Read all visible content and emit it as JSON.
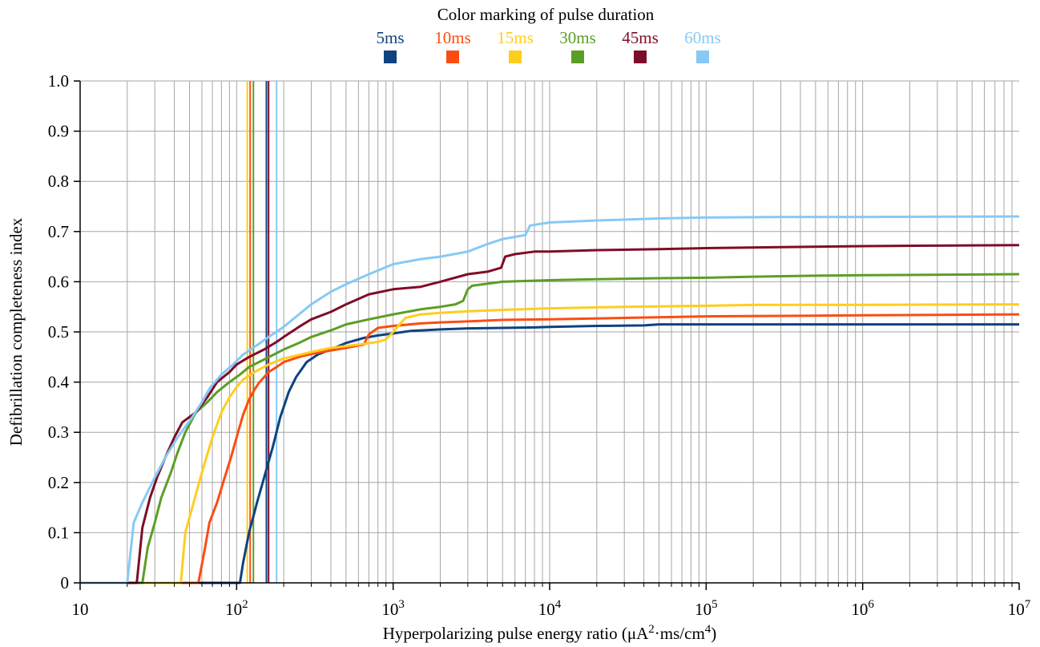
{
  "chart_data": {
    "type": "line",
    "legend": {
      "title": "Color marking of pulse duration",
      "placement": "top-center"
    },
    "xlabel": "Hyperpolarizing pulse energy ratio (μA²·ms/cm⁴)",
    "xlabel_parts": {
      "prefix": "Hyperpolarizing pulse energy ratio (μA",
      "sup1": "2",
      "mid": "·ms/cm",
      "sup2": "4",
      "suffix": ")"
    },
    "ylabel": "Defibrillation completeness index",
    "xscale": "log",
    "xlim": [
      10,
      10000000
    ],
    "ylim": [
      0,
      1.0
    ],
    "grid": true,
    "x_ticks": [
      {
        "value": 10,
        "base": "10",
        "exp": ""
      },
      {
        "value": 100,
        "base": "10",
        "exp": "2"
      },
      {
        "value": 1000,
        "base": "10",
        "exp": "3"
      },
      {
        "value": 10000,
        "base": "10",
        "exp": "4"
      },
      {
        "value": 100000,
        "base": "10",
        "exp": "5"
      },
      {
        "value": 1000000,
        "base": "10",
        "exp": "6"
      },
      {
        "value": 10000000,
        "base": "10",
        "exp": "7"
      }
    ],
    "y_ticks": [
      {
        "value": 0,
        "label": "0"
      },
      {
        "value": 0.1,
        "label": "0.1"
      },
      {
        "value": 0.2,
        "label": "0.2"
      },
      {
        "value": 0.3,
        "label": "0.3"
      },
      {
        "value": 0.4,
        "label": "0.4"
      },
      {
        "value": 0.5,
        "label": "0.5"
      },
      {
        "value": 0.6,
        "label": "0.6"
      },
      {
        "value": 0.7,
        "label": "0.7"
      },
      {
        "value": 0.8,
        "label": "0.8"
      },
      {
        "value": 0.9,
        "label": "0.9"
      },
      {
        "value": 1.0,
        "label": "1.0"
      }
    ],
    "series": [
      {
        "name": "5ms",
        "color": "#0d4380",
        "threshold": 155,
        "points": [
          [
            10,
            0
          ],
          [
            105,
            0
          ],
          [
            110,
            0.04
          ],
          [
            120,
            0.1
          ],
          [
            135,
            0.16
          ],
          [
            150,
            0.21
          ],
          [
            170,
            0.27
          ],
          [
            190,
            0.33
          ],
          [
            215,
            0.38
          ],
          [
            240,
            0.41
          ],
          [
            280,
            0.44
          ],
          [
            330,
            0.455
          ],
          [
            400,
            0.465
          ],
          [
            500,
            0.478
          ],
          [
            650,
            0.488
          ],
          [
            800,
            0.493
          ],
          [
            1000,
            0.497
          ],
          [
            1300,
            0.502
          ],
          [
            2000,
            0.505
          ],
          [
            3000,
            0.507
          ],
          [
            5000,
            0.508
          ],
          [
            8000,
            0.509
          ],
          [
            10000,
            0.51
          ],
          [
            20000,
            0.512
          ],
          [
            40000,
            0.513
          ],
          [
            50000,
            0.515
          ],
          [
            100000,
            0.515
          ],
          [
            1000000,
            0.515
          ],
          [
            10000000,
            0.515
          ]
        ]
      },
      {
        "name": "10ms",
        "color": "#fb4d12",
        "threshold": 122,
        "points": [
          [
            10,
            0
          ],
          [
            57,
            0
          ],
          [
            62,
            0.06
          ],
          [
            67,
            0.12
          ],
          [
            75,
            0.16
          ],
          [
            82,
            0.2
          ],
          [
            92,
            0.25
          ],
          [
            100,
            0.29
          ],
          [
            110,
            0.335
          ],
          [
            120,
            0.365
          ],
          [
            130,
            0.385
          ],
          [
            140,
            0.4
          ],
          [
            150,
            0.41
          ],
          [
            160,
            0.42
          ],
          [
            180,
            0.43
          ],
          [
            200,
            0.44
          ],
          [
            250,
            0.45
          ],
          [
            300,
            0.456
          ],
          [
            400,
            0.463
          ],
          [
            500,
            0.468
          ],
          [
            600,
            0.473
          ],
          [
            650,
            0.475
          ],
          [
            700,
            0.495
          ],
          [
            800,
            0.508
          ],
          [
            1000,
            0.512
          ],
          [
            1500,
            0.517
          ],
          [
            2000,
            0.519
          ],
          [
            3000,
            0.521
          ],
          [
            5000,
            0.524
          ],
          [
            10000,
            0.525
          ],
          [
            30000,
            0.528
          ],
          [
            100000,
            0.531
          ],
          [
            300000,
            0.532
          ],
          [
            1000000,
            0.533
          ],
          [
            3000000,
            0.534
          ],
          [
            10000000,
            0.535
          ]
        ]
      },
      {
        "name": "15ms",
        "color": "#ffcd1e",
        "threshold": 117,
        "points": [
          [
            10,
            0
          ],
          [
            44,
            0
          ],
          [
            47,
            0.1
          ],
          [
            52,
            0.15
          ],
          [
            60,
            0.22
          ],
          [
            70,
            0.29
          ],
          [
            80,
            0.34
          ],
          [
            90,
            0.37
          ],
          [
            100,
            0.39
          ],
          [
            110,
            0.405
          ],
          [
            130,
            0.42
          ],
          [
            160,
            0.435
          ],
          [
            200,
            0.447
          ],
          [
            300,
            0.46
          ],
          [
            400,
            0.468
          ],
          [
            600,
            0.475
          ],
          [
            800,
            0.48
          ],
          [
            900,
            0.485
          ],
          [
            1000,
            0.5
          ],
          [
            1100,
            0.515
          ],
          [
            1200,
            0.528
          ],
          [
            1500,
            0.535
          ],
          [
            2000,
            0.538
          ],
          [
            3000,
            0.541
          ],
          [
            5000,
            0.544
          ],
          [
            10000,
            0.547
          ],
          [
            30000,
            0.55
          ],
          [
            100000,
            0.552
          ],
          [
            200000,
            0.554
          ],
          [
            1000000,
            0.554
          ],
          [
            10000000,
            0.555
          ]
        ]
      },
      {
        "name": "30ms",
        "color": "#5c9e25",
        "threshold": 128,
        "points": [
          [
            10,
            0
          ],
          [
            25,
            0
          ],
          [
            27,
            0.07
          ],
          [
            30,
            0.12
          ],
          [
            33,
            0.17
          ],
          [
            38,
            0.22
          ],
          [
            42,
            0.26
          ],
          [
            47,
            0.3
          ],
          [
            55,
            0.34
          ],
          [
            65,
            0.36
          ],
          [
            75,
            0.38
          ],
          [
            90,
            0.4
          ],
          [
            105,
            0.415
          ],
          [
            120,
            0.43
          ],
          [
            150,
            0.445
          ],
          [
            200,
            0.465
          ],
          [
            250,
            0.478
          ],
          [
            300,
            0.49
          ],
          [
            400,
            0.503
          ],
          [
            500,
            0.515
          ],
          [
            700,
            0.525
          ],
          [
            1000,
            0.535
          ],
          [
            1500,
            0.545
          ],
          [
            2000,
            0.55
          ],
          [
            2500,
            0.555
          ],
          [
            2800,
            0.562
          ],
          [
            3000,
            0.585
          ],
          [
            3200,
            0.592
          ],
          [
            4000,
            0.596
          ],
          [
            5000,
            0.6
          ],
          [
            10000,
            0.603
          ],
          [
            20000,
            0.605
          ],
          [
            50000,
            0.607
          ],
          [
            100000,
            0.608
          ],
          [
            200000,
            0.61
          ],
          [
            500000,
            0.612
          ],
          [
            1000000,
            0.613
          ],
          [
            10000000,
            0.615
          ]
        ]
      },
      {
        "name": "45ms",
        "color": "#7e0d28",
        "threshold": 160,
        "points": [
          [
            10,
            0
          ],
          [
            23,
            0
          ],
          [
            25,
            0.11
          ],
          [
            28,
            0.17
          ],
          [
            31,
            0.21
          ],
          [
            35,
            0.25
          ],
          [
            40,
            0.29
          ],
          [
            45,
            0.32
          ],
          [
            55,
            0.34
          ],
          [
            65,
            0.37
          ],
          [
            75,
            0.4
          ],
          [
            90,
            0.42
          ],
          [
            100,
            0.435
          ],
          [
            120,
            0.45
          ],
          [
            150,
            0.465
          ],
          [
            180,
            0.48
          ],
          [
            200,
            0.49
          ],
          [
            250,
            0.51
          ],
          [
            300,
            0.525
          ],
          [
            400,
            0.54
          ],
          [
            500,
            0.555
          ],
          [
            700,
            0.575
          ],
          [
            1000,
            0.585
          ],
          [
            1500,
            0.59
          ],
          [
            2000,
            0.6
          ],
          [
            3000,
            0.615
          ],
          [
            4000,
            0.62
          ],
          [
            4900,
            0.628
          ],
          [
            5200,
            0.65
          ],
          [
            6000,
            0.655
          ],
          [
            8000,
            0.66
          ],
          [
            10000,
            0.66
          ],
          [
            20000,
            0.663
          ],
          [
            50000,
            0.665
          ],
          [
            100000,
            0.667
          ],
          [
            300000,
            0.669
          ],
          [
            1000000,
            0.671
          ],
          [
            10000000,
            0.673
          ]
        ]
      },
      {
        "name": "60ms",
        "color": "#87c9f5",
        "threshold": 180,
        "points": [
          [
            10,
            0
          ],
          [
            20,
            0
          ],
          [
            22,
            0.12
          ],
          [
            25,
            0.16
          ],
          [
            30,
            0.21
          ],
          [
            35,
            0.25
          ],
          [
            42,
            0.29
          ],
          [
            52,
            0.33
          ],
          [
            60,
            0.36
          ],
          [
            68,
            0.39
          ],
          [
            80,
            0.415
          ],
          [
            95,
            0.435
          ],
          [
            110,
            0.455
          ],
          [
            130,
            0.47
          ],
          [
            160,
            0.49
          ],
          [
            200,
            0.51
          ],
          [
            250,
            0.535
          ],
          [
            300,
            0.555
          ],
          [
            400,
            0.58
          ],
          [
            500,
            0.595
          ],
          [
            700,
            0.615
          ],
          [
            1000,
            0.635
          ],
          [
            1500,
            0.645
          ],
          [
            2000,
            0.65
          ],
          [
            3000,
            0.66
          ],
          [
            4000,
            0.675
          ],
          [
            5000,
            0.685
          ],
          [
            7000,
            0.693
          ],
          [
            7500,
            0.712
          ],
          [
            10000,
            0.718
          ],
          [
            20000,
            0.722
          ],
          [
            50000,
            0.726
          ],
          [
            100000,
            0.728
          ],
          [
            300000,
            0.729
          ],
          [
            1000000,
            0.729
          ],
          [
            10000000,
            0.73
          ]
        ]
      }
    ]
  }
}
